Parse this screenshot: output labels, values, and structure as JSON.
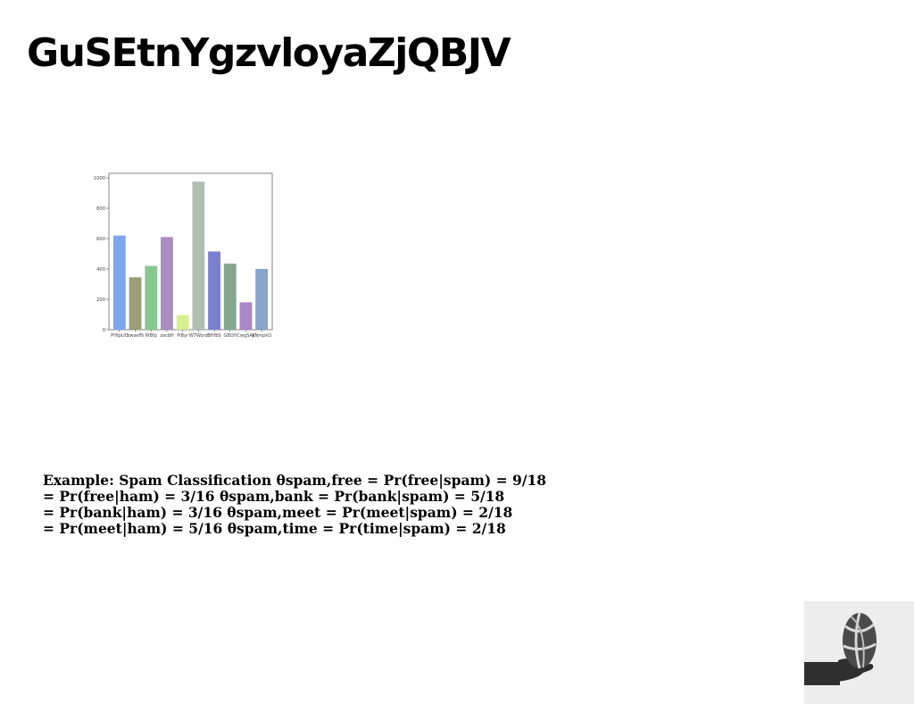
{
  "slide": {
    "title": "GuSEtnYgzvloyaZjQBJV",
    "body_lines": [
      "Example: Spam Classification θspam,free = Pr(free|spam) = 9/18",
      "= Pr(free|ham) = 3/16 θspam,bank = Pr(bank|spam) = 5/18",
      "= Pr(bank|ham) = 3/16 θspam,meet = Pr(meet|spam) = 2/18",
      "= Pr(meet|ham) = 5/16 θspam,time = Pr(time|spam) = 2/18"
    ],
    "photo_icon": "hand-holding-basketball"
  },
  "chart_data": {
    "type": "bar",
    "title": "",
    "xlabel": "",
    "ylabel": "",
    "categories": [
      "PHtpUO",
      "bwxefN",
      "WBfp",
      "zacbH",
      "PiByr",
      "WTWord",
      "BHfbS",
      "GBOfI",
      "CwgSAy",
      "XNmpkO"
    ],
    "values": [
      620,
      345,
      420,
      610,
      95,
      975,
      515,
      435,
      180,
      400
    ],
    "colors": [
      "#7ea6ef",
      "#9c9b7a",
      "#86c98f",
      "#a98ebf",
      "#d6f08f",
      "#aebfb2",
      "#7b7fcf",
      "#86a58e",
      "#a888c8",
      "#8aa3c9"
    ],
    "ylim": [
      0,
      1030
    ],
    "yticks": [
      0,
      200,
      400,
      600,
      800,
      1000
    ],
    "grid": false
  }
}
